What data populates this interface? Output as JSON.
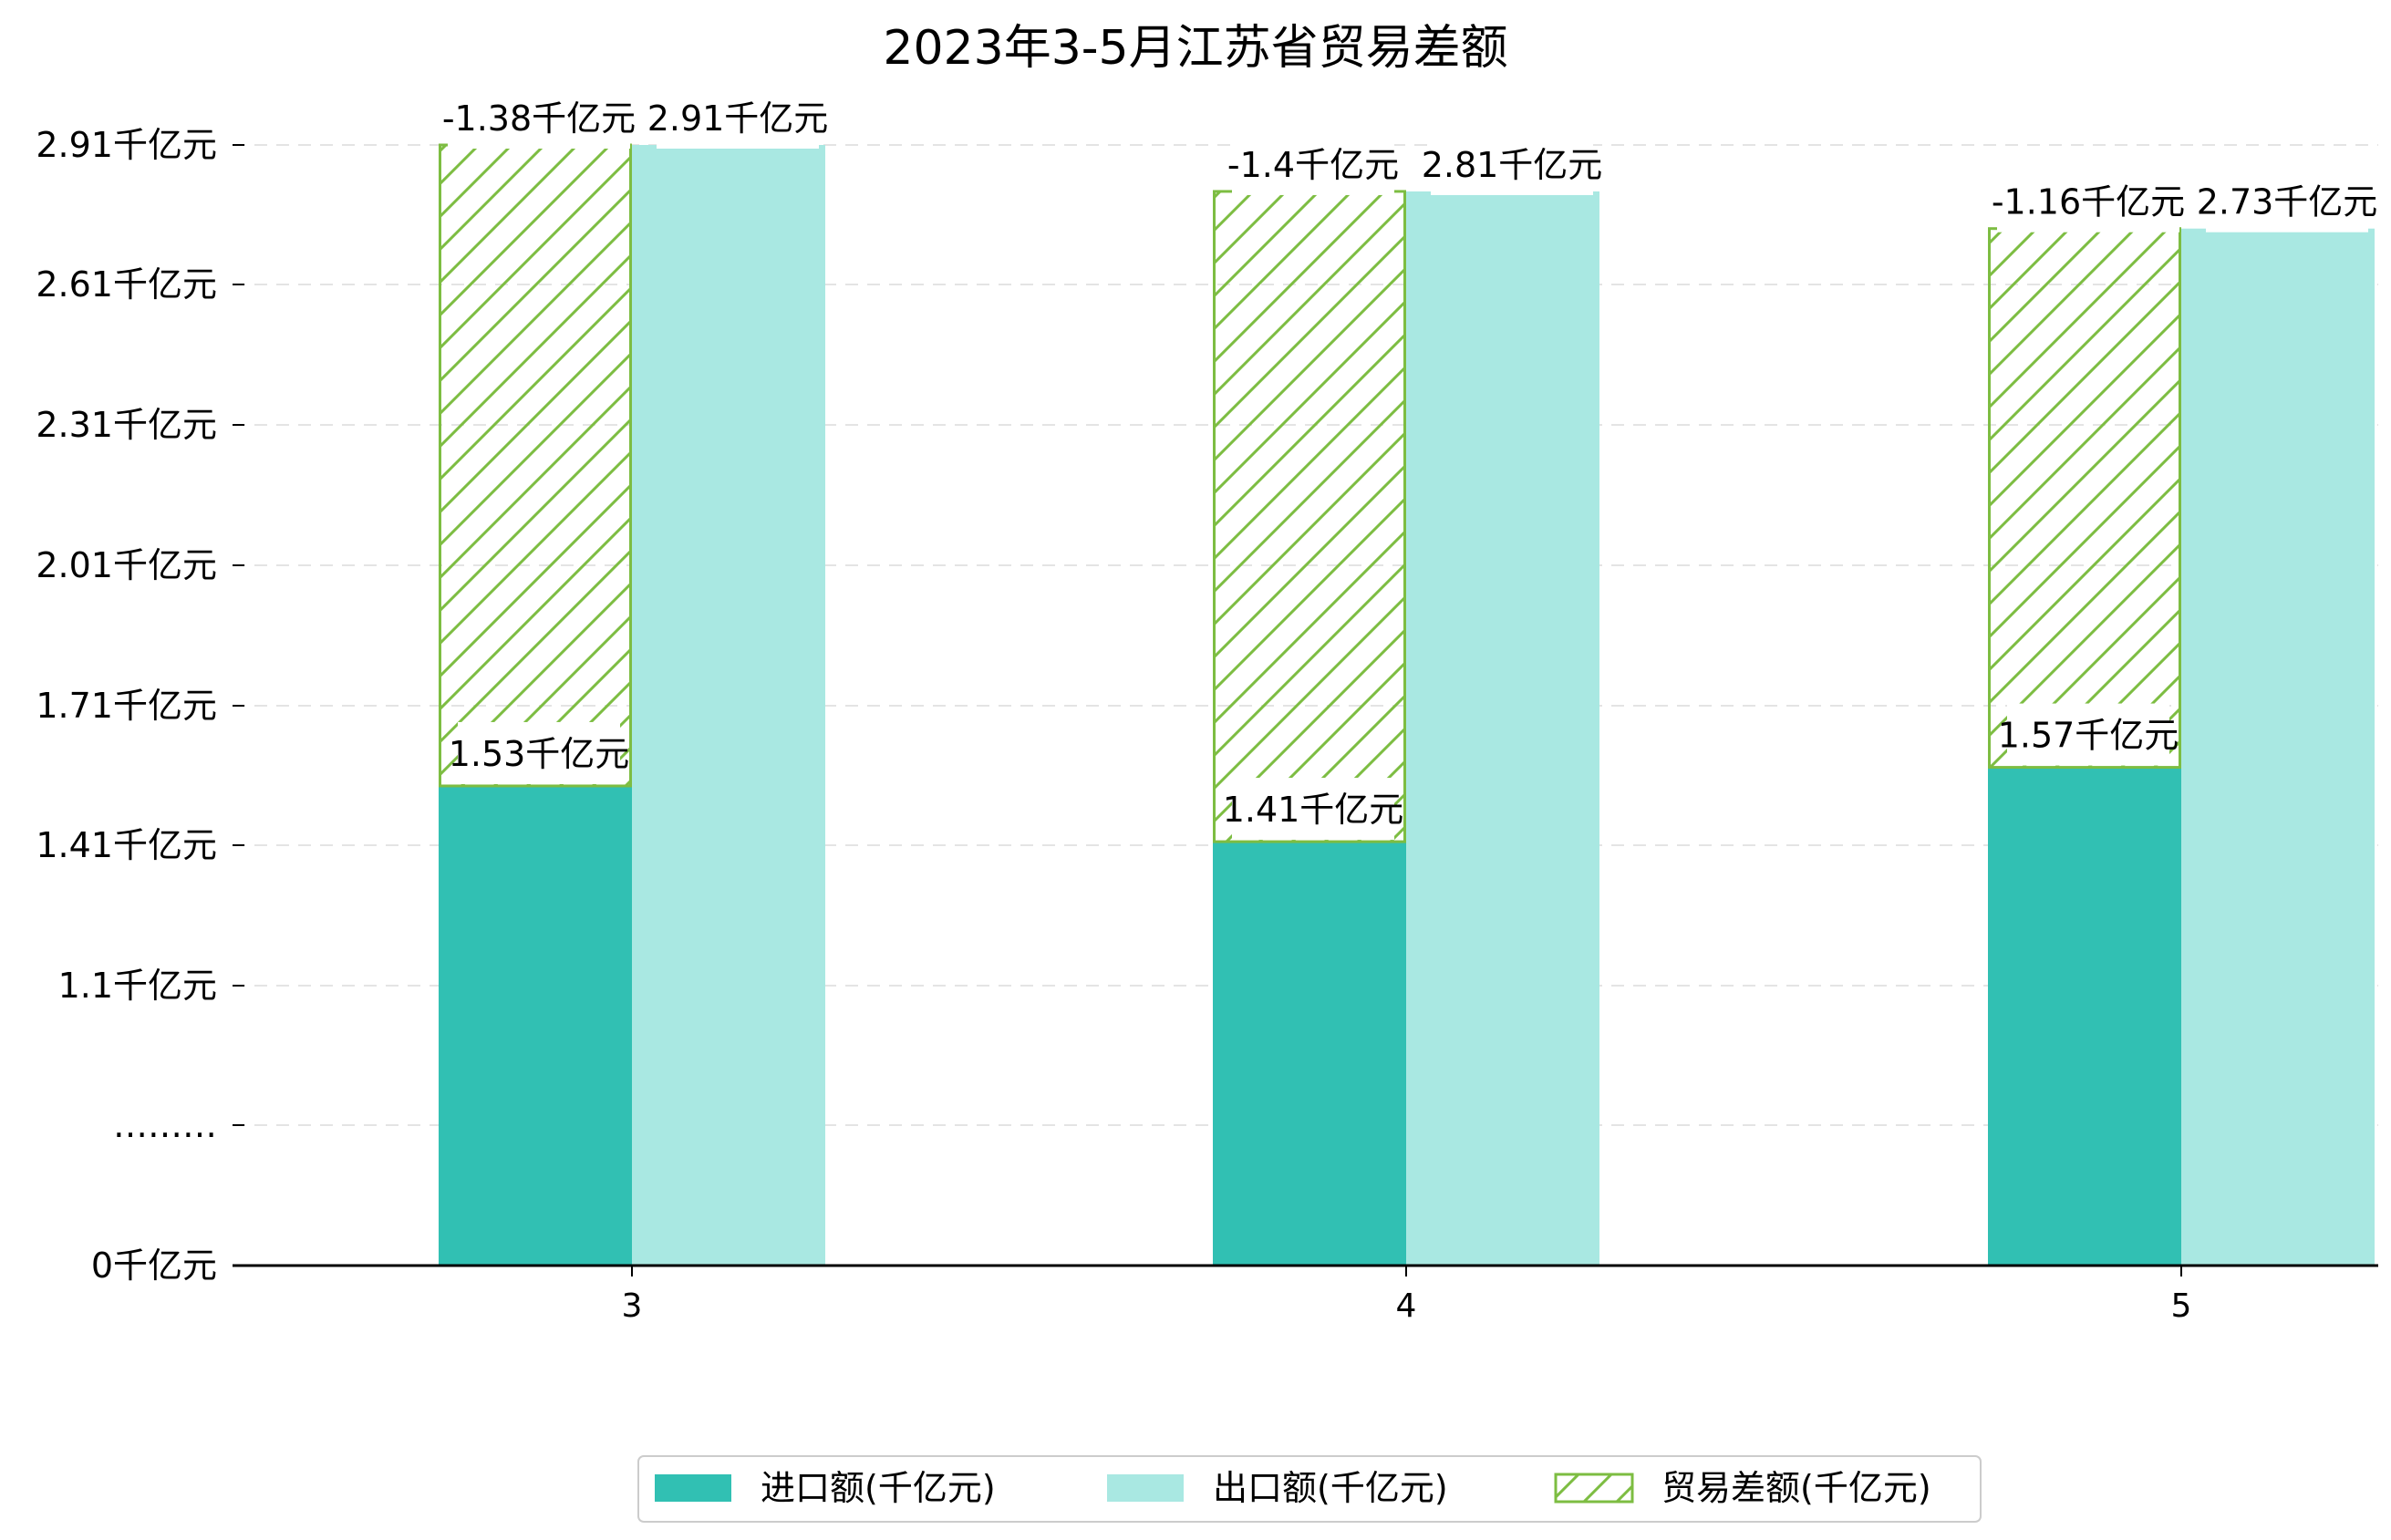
{
  "chart_data": {
    "type": "bar",
    "title": "2023年3-5月江苏省贸易差额",
    "xlabel": "",
    "ylabel": "",
    "categories": [
      "3",
      "4",
      "5"
    ],
    "y_tick_labels": [
      "0千亿元",
      "………",
      "1.1千亿元",
      "1.41千亿元",
      "1.71千亿元",
      "2.01千亿元",
      "2.31千亿元",
      "2.61千亿元",
      "2.91千亿元"
    ],
    "series": [
      {
        "name": "进口额(千亿元)",
        "values": [
          1.53,
          1.41,
          1.57
        ],
        "labels": [
          "1.53千亿元",
          "1.41千亿元",
          "1.57千亿元"
        ],
        "color": "#31c0b3"
      },
      {
        "name": "出口额(千亿元)",
        "values": [
          2.91,
          2.81,
          2.73
        ],
        "labels": [
          "2.91千亿元",
          "2.81千亿元",
          "2.73千亿元"
        ],
        "color": "#a9e8e2"
      },
      {
        "name": "贸易差额(千亿元)",
        "values": [
          -1.38,
          -1.4,
          -1.16
        ],
        "labels": [
          "-1.38千亿元",
          "-1.4千亿元",
          "-1.16千亿元"
        ],
        "color": "#7dbd42",
        "pattern": "hatch"
      }
    ],
    "grid": true,
    "legend_position": "bottom-center"
  }
}
